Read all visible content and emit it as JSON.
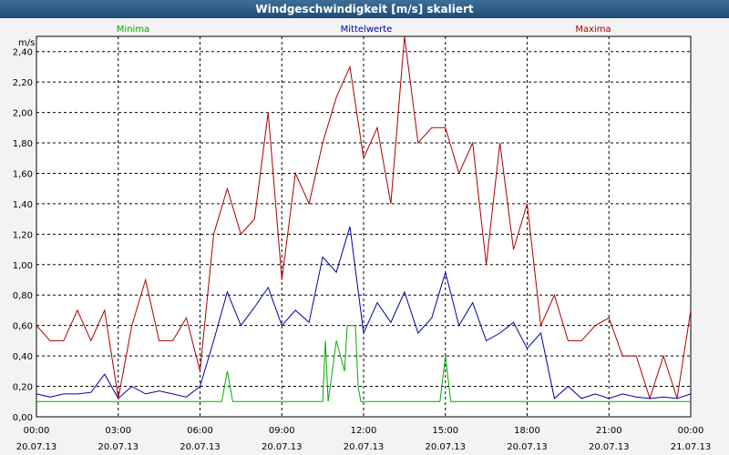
{
  "window": {
    "title": "Windgeschwindigkeit [m/s] skaliert"
  },
  "colors": {
    "minima": "#00aa00",
    "mittelwerte": "#0000aa",
    "maxima": "#aa0000",
    "grid": "#000000",
    "background": "#ffffff"
  },
  "chart_data": {
    "type": "line",
    "title": "Windgeschwindigkeit [m/s] skaliert",
    "ylabel": "m/s",
    "xlabel": "",
    "ylim": [
      0,
      2.5
    ],
    "x_range_hours": [
      0,
      24
    ],
    "y_ticks": [
      "0,00",
      "0,20",
      "0,40",
      "0,60",
      "0,80",
      "1,00",
      "1,20",
      "1,40",
      "1,60",
      "1,80",
      "2,00",
      "2,20",
      "2,40"
    ],
    "x_ticks": [
      {
        "time": "00:00",
        "date": "20.07.13"
      },
      {
        "time": "03:00",
        "date": "20.07.13"
      },
      {
        "time": "06:00",
        "date": "20.07.13"
      },
      {
        "time": "09:00",
        "date": "20.07.13"
      },
      {
        "time": "12:00",
        "date": "20.07.13"
      },
      {
        "time": "15:00",
        "date": "20.07.13"
      },
      {
        "time": "18:00",
        "date": "20.07.13"
      },
      {
        "time": "21:00",
        "date": "20.07.13"
      },
      {
        "time": "00:00",
        "date": "21.07.13"
      }
    ],
    "legend": [
      "Minima",
      "Mittelwerte",
      "Maxima"
    ],
    "grid": true,
    "series": [
      {
        "name": "Minima",
        "x": [
          0,
          6.8,
          7.0,
          7.2,
          10.5,
          10.6,
          10.7,
          11.0,
          11.3,
          11.4,
          11.7,
          11.8,
          11.9,
          14.8,
          15.0,
          15.2,
          24
        ],
        "values": [
          0.1,
          0.1,
          0.3,
          0.1,
          0.1,
          0.5,
          0.1,
          0.5,
          0.3,
          0.6,
          0.6,
          0.2,
          0.1,
          0.1,
          0.4,
          0.1,
          0.1
        ]
      },
      {
        "name": "Mittelwerte",
        "x": [
          0,
          0.5,
          1,
          1.5,
          2,
          2.5,
          3,
          3.5,
          4,
          4.5,
          5,
          5.5,
          6,
          6.5,
          7,
          7.5,
          8,
          8.5,
          9,
          9.5,
          10,
          10.5,
          11,
          11.5,
          12,
          12.5,
          13,
          13.5,
          14,
          14.5,
          15,
          15.5,
          16,
          16.5,
          17,
          17.5,
          18,
          18.5,
          19,
          19.5,
          20,
          20.5,
          21,
          21.5,
          22,
          22.5,
          23,
          23.5,
          24
        ],
        "values": [
          0.15,
          0.13,
          0.15,
          0.15,
          0.16,
          0.28,
          0.12,
          0.2,
          0.15,
          0.17,
          0.15,
          0.13,
          0.2,
          0.5,
          0.82,
          0.6,
          0.72,
          0.85,
          0.6,
          0.7,
          0.62,
          1.05,
          0.95,
          1.25,
          0.55,
          0.75,
          0.62,
          0.82,
          0.55,
          0.65,
          0.95,
          0.6,
          0.75,
          0.5,
          0.55,
          0.62,
          0.45,
          0.55,
          0.12,
          0.2,
          0.12,
          0.15,
          0.12,
          0.15,
          0.13,
          0.12,
          0.13,
          0.12,
          0.15
        ]
      },
      {
        "name": "Maxima",
        "x": [
          0,
          0.5,
          1,
          1.5,
          2,
          2.5,
          3,
          3.5,
          4,
          4.5,
          5,
          5.5,
          6,
          6.5,
          7,
          7.5,
          8,
          8.5,
          9,
          9.5,
          10,
          10.5,
          11,
          11.5,
          12,
          12.5,
          13,
          13.5,
          14,
          14.5,
          15,
          15.5,
          16,
          16.5,
          17,
          17.5,
          18,
          18.5,
          19,
          19.5,
          20,
          20.5,
          21,
          21.5,
          22,
          22.5,
          23,
          23.5,
          24
        ],
        "values": [
          0.6,
          0.5,
          0.5,
          0.7,
          0.5,
          0.7,
          0.12,
          0.6,
          0.9,
          0.5,
          0.5,
          0.65,
          0.3,
          1.2,
          1.5,
          1.2,
          1.3,
          2.0,
          0.9,
          1.6,
          1.4,
          1.8,
          2.1,
          2.3,
          1.7,
          1.9,
          1.4,
          2.5,
          1.8,
          1.9,
          1.9,
          1.6,
          1.8,
          1.0,
          1.8,
          1.1,
          1.4,
          0.6,
          0.8,
          0.5,
          0.5,
          0.6,
          0.65,
          0.4,
          0.4,
          0.12,
          0.4,
          0.12,
          0.7
        ]
      }
    ]
  }
}
